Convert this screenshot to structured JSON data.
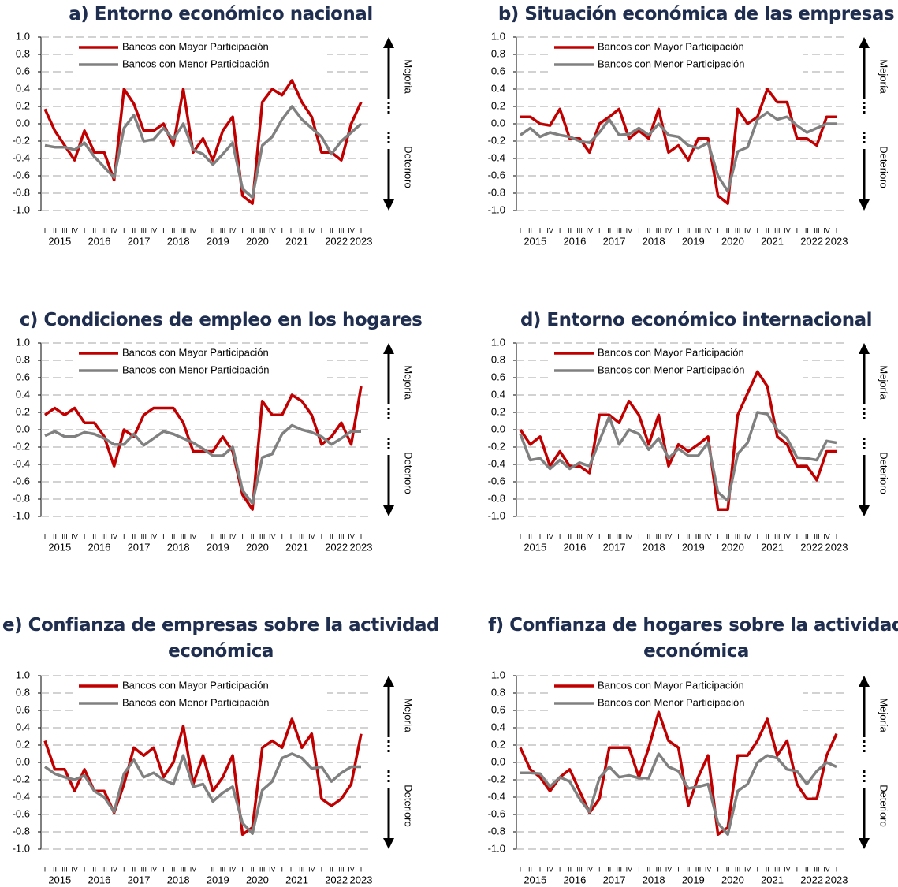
{
  "chart_data": [
    {
      "type": "line",
      "title": "a) Entorno económico nacional",
      "up_label": "Mejoría",
      "down_label": "Deterioro",
      "categories": [
        "I",
        "II",
        "III",
        "IV",
        "I",
        "II",
        "III",
        "IV",
        "I",
        "II",
        "III",
        "IV",
        "I",
        "II",
        "III",
        "IV",
        "I",
        "II",
        "III",
        "IV",
        "I",
        "II",
        "III",
        "IV",
        "I",
        "II",
        "III",
        "IV",
        "I",
        "II",
        "III",
        "IV",
        "I"
      ],
      "years": [
        "2015",
        "2016",
        "2017",
        "2018",
        "2019",
        "2020",
        "2021",
        "2022",
        "2023"
      ],
      "ylim": [
        -1,
        1
      ],
      "yticks": [
        {
          "value": 1,
          "label": "1.0"
        },
        {
          "value": 0.8,
          "label": "0.8"
        },
        {
          "value": 0.6,
          "label": "0.6"
        },
        {
          "value": 0.4,
          "label": "0.4"
        },
        {
          "value": 0.2,
          "label": "0.2"
        },
        {
          "value": 0,
          "label": "0.0"
        },
        {
          "value": -0.2,
          "label": "-0.2"
        },
        {
          "value": -0.4,
          "label": "-0.4"
        },
        {
          "value": -0.6,
          "label": "-0.6"
        },
        {
          "value": -0.8,
          "label": "-0.8"
        },
        {
          "value": -1,
          "label": "-1.0"
        }
      ],
      "grid": true,
      "series": [
        {
          "name": "Bancos con Mayor Participación",
          "color": "#c00000",
          "values": [
            0.17,
            -0.08,
            -0.25,
            -0.42,
            -0.08,
            -0.33,
            -0.33,
            -0.65,
            0.4,
            0.23,
            -0.08,
            -0.08,
            0.0,
            -0.25,
            0.4,
            -0.33,
            -0.17,
            -0.42,
            -0.08,
            0.08,
            -0.83,
            -0.92,
            0.25,
            0.4,
            0.33,
            0.5,
            0.25,
            0.08,
            -0.33,
            -0.33,
            -0.42,
            0.0,
            0.25
          ]
        },
        {
          "name": "Bancos con Menor Participación",
          "color": "#808080",
          "values": [
            -0.25,
            -0.27,
            -0.27,
            -0.3,
            -0.22,
            -0.38,
            -0.5,
            -0.62,
            -0.05,
            0.1,
            -0.2,
            -0.18,
            -0.05,
            -0.18,
            0.0,
            -0.3,
            -0.35,
            -0.47,
            -0.35,
            -0.22,
            -0.75,
            -0.85,
            -0.25,
            -0.15,
            0.05,
            0.2,
            0.05,
            -0.05,
            -0.15,
            -0.35,
            -0.2,
            -0.1,
            0.0
          ]
        }
      ]
    },
    {
      "type": "line",
      "title": "b) Situación económica de las empresas",
      "up_label": "Mejoría",
      "down_label": "Deterioro",
      "categories": [
        "I",
        "II",
        "III",
        "IV",
        "I",
        "II",
        "III",
        "IV",
        "I",
        "II",
        "III",
        "IV",
        "I",
        "II",
        "III",
        "IV",
        "I",
        "II",
        "III",
        "IV",
        "I",
        "II",
        "III",
        "IV",
        "I",
        "II",
        "III",
        "IV",
        "I",
        "II",
        "III",
        "IV",
        "I"
      ],
      "years": [
        "2015",
        "2016",
        "2017",
        "2018",
        "2019",
        "2020",
        "2021",
        "2022",
        "2023"
      ],
      "ylim": [
        -1,
        1
      ],
      "yticks": [
        {
          "value": 1,
          "label": "1.0"
        },
        {
          "value": 0.8,
          "label": "0.8"
        },
        {
          "value": 0.6,
          "label": "0.6"
        },
        {
          "value": 0.4,
          "label": "0.4"
        },
        {
          "value": 0.2,
          "label": "0.2"
        },
        {
          "value": 0,
          "label": "0.0"
        },
        {
          "value": -0.2,
          "label": "-0.2"
        },
        {
          "value": -0.4,
          "label": "-0.4"
        },
        {
          "value": -0.6,
          "label": "-0.6"
        },
        {
          "value": -0.8,
          "label": "-0.8"
        },
        {
          "value": -1,
          "label": "-1.0"
        }
      ],
      "grid": true,
      "series": [
        {
          "name": "Bancos con Mayor Participación",
          "color": "#c00000",
          "values": [
            0.08,
            0.08,
            0.0,
            -0.02,
            0.17,
            -0.17,
            -0.17,
            -0.33,
            0.0,
            0.08,
            0.17,
            -0.17,
            -0.08,
            -0.17,
            0.17,
            -0.33,
            -0.25,
            -0.42,
            -0.17,
            -0.17,
            -0.83,
            -0.92,
            0.17,
            0.0,
            0.08,
            0.4,
            0.25,
            0.25,
            -0.17,
            -0.17,
            -0.25,
            0.08,
            0.08
          ]
        },
        {
          "name": "Bancos con Menor Participación",
          "color": "#808080",
          "values": [
            -0.13,
            -0.05,
            -0.15,
            -0.1,
            -0.13,
            -0.15,
            -0.2,
            -0.22,
            -0.1,
            0.05,
            -0.13,
            -0.12,
            -0.05,
            -0.13,
            0.0,
            -0.13,
            -0.15,
            -0.25,
            -0.28,
            -0.22,
            -0.6,
            -0.78,
            -0.32,
            -0.27,
            0.05,
            0.13,
            0.05,
            0.08,
            -0.02,
            -0.1,
            -0.05,
            0.0,
            0.0
          ]
        }
      ]
    },
    {
      "type": "line",
      "title": "c) Condiciones de empleo en los hogares",
      "up_label": "Mejoría",
      "down_label": "Deterioro",
      "categories": [
        "I",
        "II",
        "III",
        "IV",
        "I",
        "II",
        "III",
        "IV",
        "I",
        "II",
        "III",
        "IV",
        "I",
        "II",
        "III",
        "IV",
        "I",
        "II",
        "III",
        "IV",
        "I",
        "II",
        "III",
        "IV",
        "I",
        "II",
        "III",
        "IV",
        "I",
        "II",
        "III",
        "IV",
        "I"
      ],
      "years": [
        "2015",
        "2016",
        "2017",
        "2018",
        "2019",
        "2020",
        "2021",
        "2022",
        "2023"
      ],
      "ylim": [
        -1,
        1
      ],
      "yticks": [
        {
          "value": 1,
          "label": "1.0"
        },
        {
          "value": 0.8,
          "label": "0.8"
        },
        {
          "value": 0.6,
          "label": "0.6"
        },
        {
          "value": 0.4,
          "label": "0.4"
        },
        {
          "value": 0.2,
          "label": "0.2"
        },
        {
          "value": 0,
          "label": "0.0"
        },
        {
          "value": -0.2,
          "label": "-0.2"
        },
        {
          "value": -0.4,
          "label": "-0.4"
        },
        {
          "value": -0.6,
          "label": "-0.6"
        },
        {
          "value": -0.8,
          "label": "-0.8"
        },
        {
          "value": -1,
          "label": "-1.0"
        }
      ],
      "grid": true,
      "series": [
        {
          "name": "Bancos con Mayor Participación",
          "color": "#c00000",
          "values": [
            0.17,
            0.25,
            0.17,
            0.25,
            0.08,
            0.08,
            -0.08,
            -0.42,
            0.0,
            -0.08,
            0.17,
            0.25,
            0.25,
            0.25,
            0.08,
            -0.25,
            -0.25,
            -0.25,
            -0.08,
            -0.25,
            -0.75,
            -0.92,
            0.33,
            0.17,
            0.17,
            0.4,
            0.33,
            0.17,
            -0.17,
            -0.08,
            0.08,
            -0.17,
            0.5
          ]
        },
        {
          "name": "Bancos con Menor Participación",
          "color": "#808080",
          "values": [
            -0.07,
            -0.02,
            -0.08,
            -0.08,
            -0.03,
            -0.05,
            -0.1,
            -0.17,
            -0.17,
            -0.05,
            -0.18,
            -0.1,
            -0.02,
            -0.05,
            -0.1,
            -0.15,
            -0.22,
            -0.3,
            -0.3,
            -0.2,
            -0.7,
            -0.85,
            -0.32,
            -0.28,
            -0.05,
            0.05,
            0.0,
            -0.03,
            -0.08,
            -0.17,
            -0.1,
            -0.02,
            -0.02
          ]
        }
      ]
    },
    {
      "type": "line",
      "title": "d) Entorno económico internacional",
      "up_label": "Mejoría",
      "down_label": "Deterioro",
      "categories": [
        "I",
        "II",
        "III",
        "IV",
        "I",
        "II",
        "III",
        "IV",
        "I",
        "II",
        "III",
        "IV",
        "I",
        "II",
        "III",
        "IV",
        "I",
        "II",
        "III",
        "IV",
        "I",
        "II",
        "III",
        "IV",
        "I",
        "II",
        "III",
        "IV",
        "I",
        "II",
        "III",
        "IV",
        "I"
      ],
      "years": [
        "2015",
        "2016",
        "2017",
        "2018",
        "2019",
        "2020",
        "2021",
        "2022",
        "2023"
      ],
      "ylim": [
        -1,
        1
      ],
      "yticks": [
        {
          "value": 1,
          "label": "1.0"
        },
        {
          "value": 0.8,
          "label": "0.8"
        },
        {
          "value": 0.6,
          "label": "0.6"
        },
        {
          "value": 0.4,
          "label": "0.4"
        },
        {
          "value": 0.2,
          "label": "0.2"
        },
        {
          "value": 0,
          "label": "0.0"
        },
        {
          "value": -0.2,
          "label": "-0.2"
        },
        {
          "value": -0.4,
          "label": "-0.4"
        },
        {
          "value": -0.6,
          "label": "-0.6"
        },
        {
          "value": -0.8,
          "label": "-0.8"
        },
        {
          "value": -1,
          "label": "-1.0"
        }
      ],
      "grid": true,
      "series": [
        {
          "name": "Bancos con Mayor Participación",
          "color": "#c00000",
          "values": [
            0.0,
            -0.17,
            -0.08,
            -0.42,
            -0.25,
            -0.42,
            -0.42,
            -0.5,
            0.17,
            0.17,
            0.08,
            0.33,
            0.17,
            -0.17,
            0.17,
            -0.42,
            -0.17,
            -0.25,
            -0.17,
            -0.08,
            -0.92,
            -0.92,
            0.17,
            0.42,
            0.67,
            0.5,
            -0.08,
            -0.17,
            -0.42,
            -0.42,
            -0.58,
            -0.25,
            -0.25
          ]
        },
        {
          "name": "Bancos con Menor Participación",
          "color": "#808080",
          "values": [
            -0.05,
            -0.35,
            -0.33,
            -0.45,
            -0.35,
            -0.45,
            -0.38,
            -0.42,
            -0.13,
            0.15,
            -0.17,
            0.0,
            -0.05,
            -0.23,
            -0.1,
            -0.33,
            -0.22,
            -0.3,
            -0.3,
            -0.15,
            -0.72,
            -0.82,
            -0.28,
            -0.15,
            0.2,
            0.18,
            0.0,
            -0.1,
            -0.32,
            -0.33,
            -0.35,
            -0.13,
            -0.15
          ]
        }
      ]
    },
    {
      "type": "line",
      "title": "e) Confianza de empresas sobre la actividad económica",
      "up_label": "Mejoría",
      "down_label": "Deterioro",
      "categories": [
        "I",
        "II",
        "III",
        "IV",
        "I",
        "II",
        "III",
        "IV",
        "I",
        "II",
        "III",
        "IV",
        "I",
        "II",
        "III",
        "IV",
        "I",
        "II",
        "III",
        "IV",
        "I",
        "II",
        "III",
        "IV",
        "I",
        "II",
        "III",
        "IV",
        "I",
        "II",
        "III",
        "IV",
        "I"
      ],
      "years": [
        "2015",
        "2016",
        "2017",
        "2018",
        "2019",
        "2020",
        "2021",
        "2022",
        "2023"
      ],
      "ylim": [
        -1,
        1
      ],
      "yticks": [
        {
          "value": 1,
          "label": "1.0"
        },
        {
          "value": 0.8,
          "label": "0.8"
        },
        {
          "value": 0.6,
          "label": "0.6"
        },
        {
          "value": 0.4,
          "label": "0.4"
        },
        {
          "value": 0.2,
          "label": "0.2"
        },
        {
          "value": 0,
          "label": "0.0"
        },
        {
          "value": -0.2,
          "label": "-0.2"
        },
        {
          "value": -0.4,
          "label": "-0.4"
        },
        {
          "value": -0.6,
          "label": "-0.6"
        },
        {
          "value": -0.8,
          "label": "-0.8"
        },
        {
          "value": -1,
          "label": "-1.0"
        }
      ],
      "grid": true,
      "series": [
        {
          "name": "Bancos con Mayor Participación",
          "color": "#c00000",
          "values": [
            0.25,
            -0.08,
            -0.08,
            -0.33,
            -0.08,
            -0.33,
            -0.33,
            -0.58,
            -0.25,
            0.17,
            0.08,
            0.17,
            -0.17,
            0.0,
            0.42,
            -0.25,
            0.08,
            -0.33,
            -0.17,
            0.08,
            -0.83,
            -0.75,
            0.17,
            0.25,
            0.17,
            0.5,
            0.17,
            0.33,
            -0.42,
            -0.5,
            -0.42,
            -0.25,
            0.33
          ]
        },
        {
          "name": "Bancos con Menor Participación",
          "color": "#808080",
          "values": [
            -0.05,
            -0.13,
            -0.17,
            -0.2,
            -0.15,
            -0.33,
            -0.4,
            -0.57,
            -0.13,
            0.03,
            -0.17,
            -0.12,
            -0.2,
            -0.25,
            0.08,
            -0.28,
            -0.25,
            -0.45,
            -0.35,
            -0.28,
            -0.7,
            -0.82,
            -0.32,
            -0.22,
            0.05,
            0.1,
            0.05,
            -0.07,
            -0.05,
            -0.22,
            -0.12,
            -0.05,
            -0.05
          ]
        }
      ]
    },
    {
      "type": "line",
      "title": "f) Confianza de hogares sobre la actividad económica",
      "up_label": "Mejoría",
      "down_label": "Deterioro",
      "categories": [
        "I",
        "II",
        "III",
        "IV",
        "I",
        "II",
        "III",
        "IV",
        "I",
        "II",
        "III",
        "IV",
        "I",
        "II",
        "III",
        "IV",
        "I",
        "II",
        "III",
        "IV",
        "I",
        "II",
        "III",
        "IV",
        "I",
        "II",
        "III",
        "IV",
        "I",
        "II",
        "III",
        "IV",
        "I"
      ],
      "years": [
        "2015",
        "2016",
        "2017",
        "2018",
        "2019",
        "2020",
        "2021",
        "2022",
        "2023"
      ],
      "ylim": [
        -1,
        1
      ],
      "yticks": [
        {
          "value": 1,
          "label": "1.0"
        },
        {
          "value": 0.8,
          "label": "0.8"
        },
        {
          "value": 0.6,
          "label": "0.6"
        },
        {
          "value": 0.4,
          "label": "0.4"
        },
        {
          "value": 0.2,
          "label": "0.2"
        },
        {
          "value": 0,
          "label": "0.0"
        },
        {
          "value": -0.2,
          "label": "-0.2"
        },
        {
          "value": -0.4,
          "label": "-0.4"
        },
        {
          "value": -0.6,
          "label": "-0.6"
        },
        {
          "value": -0.8,
          "label": "-0.8"
        },
        {
          "value": -1,
          "label": "-1.0"
        }
      ],
      "grid": true,
      "series": [
        {
          "name": "Bancos con Mayor Participación",
          "color": "#c00000",
          "values": [
            0.17,
            -0.08,
            -0.17,
            -0.33,
            -0.17,
            -0.08,
            -0.33,
            -0.58,
            -0.42,
            0.17,
            0.17,
            0.17,
            -0.17,
            0.17,
            0.58,
            0.25,
            0.17,
            -0.5,
            -0.17,
            0.08,
            -0.83,
            -0.75,
            0.08,
            0.08,
            0.25,
            0.5,
            0.08,
            0.25,
            -0.25,
            -0.42,
            -0.42,
            0.08,
            0.33
          ]
        },
        {
          "name": "Bancos con Menor Participación",
          "color": "#808080",
          "values": [
            -0.12,
            -0.12,
            -0.13,
            -0.28,
            -0.17,
            -0.22,
            -0.42,
            -0.57,
            -0.18,
            -0.05,
            -0.17,
            -0.15,
            -0.18,
            -0.18,
            0.1,
            -0.05,
            -0.1,
            -0.3,
            -0.28,
            -0.25,
            -0.7,
            -0.83,
            -0.33,
            -0.25,
            0.0,
            0.08,
            0.05,
            -0.08,
            -0.1,
            -0.25,
            -0.1,
            0.0,
            -0.05
          ]
        }
      ]
    }
  ]
}
